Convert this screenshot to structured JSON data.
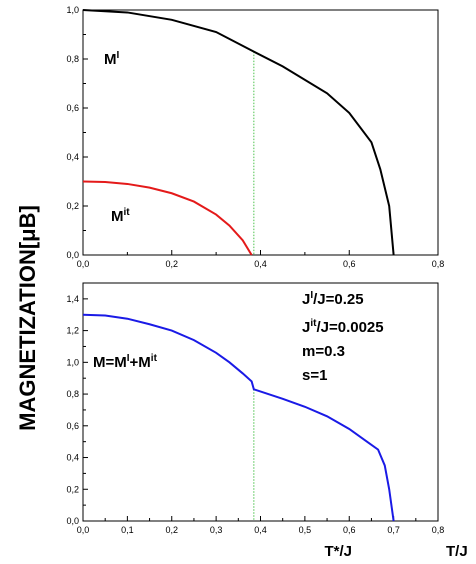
{
  "chart_data": [
    {
      "type": "line",
      "panel": "top",
      "ylabel": "MAGNETIZATION[μB]",
      "xlim": [
        0.0,
        0.8
      ],
      "ylim": [
        0.0,
        1.0
      ],
      "x_ticks": [
        "0,0",
        "0,2",
        "0,4",
        "0,6",
        "0,8"
      ],
      "y_ticks": [
        "0,0",
        "0,2",
        "0,4",
        "0,6",
        "0,8",
        "1,0"
      ],
      "grid": false,
      "series": [
        {
          "name": "M^I",
          "color": "#000000",
          "x": [
            0.0,
            0.1,
            0.2,
            0.3,
            0.385,
            0.45,
            0.55,
            0.6,
            0.65,
            0.67,
            0.69,
            0.7
          ],
          "y": [
            1.0,
            0.99,
            0.96,
            0.91,
            0.83,
            0.77,
            0.66,
            0.58,
            0.46,
            0.35,
            0.2,
            0.0
          ]
        },
        {
          "name": "M^it",
          "color": "#e41a1a",
          "x": [
            0.0,
            0.05,
            0.1,
            0.15,
            0.2,
            0.25,
            0.3,
            0.33,
            0.36,
            0.38
          ],
          "y": [
            0.3,
            0.298,
            0.29,
            0.275,
            0.252,
            0.218,
            0.165,
            0.12,
            0.06,
            0.0
          ]
        }
      ],
      "vline": {
        "x": 0.385,
        "color": "#4cc24c",
        "style": "dotted"
      },
      "labels": {
        "mi_base": "M",
        "mi_sup": "I",
        "mit_base": "M",
        "mit_sup": "it"
      }
    },
    {
      "type": "line",
      "panel": "bottom",
      "xlim": [
        0.0,
        0.8
      ],
      "ylim": [
        0.0,
        1.5
      ],
      "x_ticks": [
        "0,0",
        "0,1",
        "0,2",
        "0,3",
        "0,4",
        "0,5",
        "0,6",
        "0,7",
        "0,8"
      ],
      "y_ticks": [
        "0,0",
        "0,2",
        "0,4",
        "0,6",
        "0,8",
        "1,0",
        "1,2",
        "1,4"
      ],
      "grid": false,
      "series": [
        {
          "name": "M=M^I+M^it",
          "color": "#1a1ae6",
          "x": [
            0.0,
            0.05,
            0.1,
            0.15,
            0.2,
            0.25,
            0.3,
            0.33,
            0.36,
            0.38,
            0.385,
            0.45,
            0.5,
            0.55,
            0.6,
            0.64,
            0.665,
            0.68,
            0.69,
            0.7
          ],
          "y": [
            1.3,
            1.295,
            1.275,
            1.24,
            1.2,
            1.14,
            1.06,
            1.0,
            0.93,
            0.88,
            0.83,
            0.77,
            0.72,
            0.66,
            0.58,
            0.5,
            0.45,
            0.35,
            0.2,
            0.0
          ]
        }
      ],
      "vline": {
        "x": 0.385,
        "color": "#4cc24c",
        "style": "dotted"
      },
      "annotations": {
        "param_line1_a": "J",
        "param_line1_sup": "I",
        "param_line1_b": "/J=0.25",
        "param_line2_a": "J",
        "param_line2_sup": "it",
        "param_line2_b": "/J=0.0025",
        "param_line3": "m=0.3",
        "param_line4": "s=1",
        "sum_a": "M=M",
        "sum_sup1": "I",
        "sum_b": "+M",
        "sum_sup2": "it"
      },
      "xlabel_tstar": "T*/J",
      "xlabel": "T/J"
    }
  ]
}
